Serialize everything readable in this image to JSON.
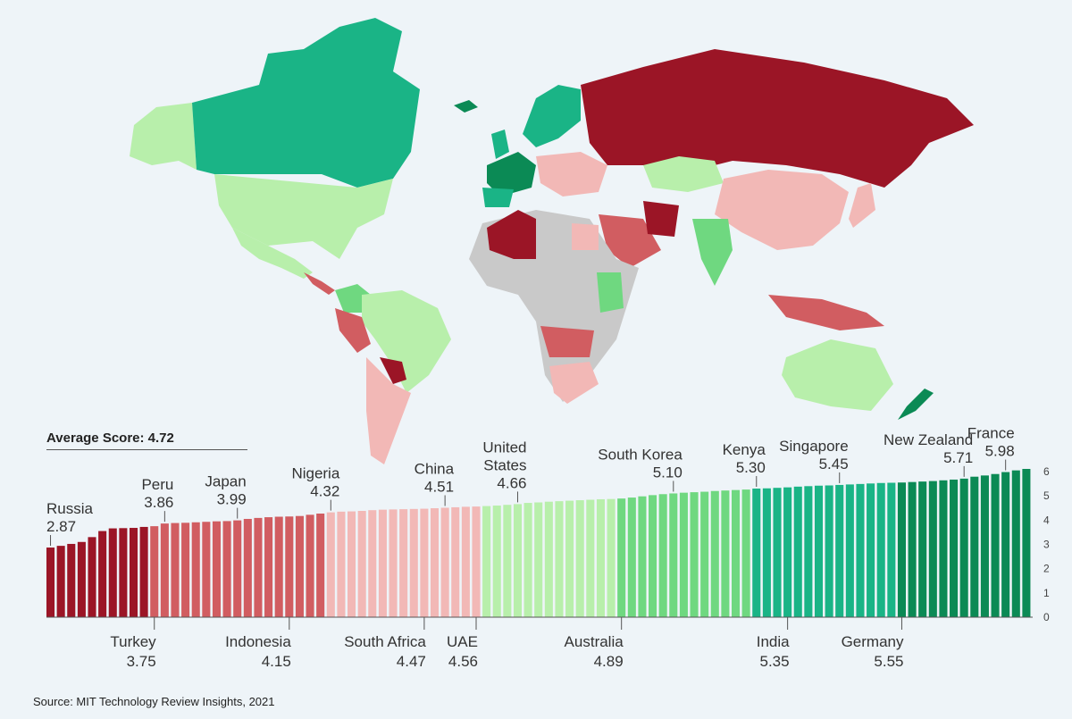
{
  "average": {
    "label": "Average Score: 4.72"
  },
  "source": "Source: MIT Technology Review Insights, 2021",
  "palette": {
    "dark_red": "#9b1526",
    "mid_red": "#d15d61",
    "light_red": "#f2b8b6",
    "light_green": "#b8efab",
    "mid_green": "#6fd880",
    "teal": "#1ab486",
    "dark_green": "#0b8a55",
    "no_data": "#c9c9c9"
  },
  "chart_data": {
    "type": "bar",
    "ylim": [
      0,
      6
    ],
    "yticks": [
      "0",
      "1",
      "2",
      "3",
      "4",
      "5",
      "6"
    ],
    "values": [
      2.87,
      2.94,
      3.02,
      3.1,
      3.3,
      3.55,
      3.66,
      3.67,
      3.68,
      3.72,
      3.75,
      3.86,
      3.88,
      3.89,
      3.91,
      3.93,
      3.95,
      3.96,
      3.99,
      4.05,
      4.09,
      4.12,
      4.14,
      4.15,
      4.17,
      4.22,
      4.27,
      4.32,
      4.35,
      4.36,
      4.38,
      4.41,
      4.43,
      4.44,
      4.45,
      4.46,
      4.47,
      4.49,
      4.51,
      4.53,
      4.55,
      4.56,
      4.58,
      4.6,
      4.63,
      4.66,
      4.71,
      4.73,
      4.76,
      4.78,
      4.8,
      4.82,
      4.84,
      4.86,
      4.87,
      4.89,
      4.93,
      4.98,
      5.03,
      5.07,
      5.1,
      5.13,
      5.15,
      5.17,
      5.2,
      5.22,
      5.24,
      5.26,
      5.3,
      5.31,
      5.33,
      5.35,
      5.38,
      5.4,
      5.42,
      5.43,
      5.45,
      5.47,
      5.49,
      5.51,
      5.53,
      5.54,
      5.55,
      5.57,
      5.59,
      5.61,
      5.64,
      5.67,
      5.71,
      5.79,
      5.84,
      5.9,
      5.98,
      6.05,
      6.11
    ],
    "labels_above": [
      {
        "index": 0,
        "name": "Russia",
        "value": "2.87"
      },
      {
        "index": 11,
        "name": "Peru",
        "value": "3.86"
      },
      {
        "index": 18,
        "name": "Japan",
        "value": "3.99"
      },
      {
        "index": 27,
        "name": "Nigeria",
        "value": "4.32"
      },
      {
        "index": 38,
        "name": "China",
        "value": "4.51"
      },
      {
        "index": 45,
        "name": "United States",
        "name_lines": [
          "United",
          "States"
        ],
        "value": "4.66"
      },
      {
        "index": 60,
        "name": "South Korea",
        "value": "5.10"
      },
      {
        "index": 68,
        "name": "Kenya",
        "value": "5.30"
      },
      {
        "index": 76,
        "name": "Singapore",
        "value": "5.45"
      },
      {
        "index": 88,
        "name": "New Zealand",
        "value": "5.71"
      },
      {
        "index": 92,
        "name": "France",
        "value": "5.98"
      }
    ],
    "labels_below": [
      {
        "index": 10,
        "name": "Turkey",
        "value": "3.75"
      },
      {
        "index": 23,
        "name": "Indonesia",
        "value": "4.15"
      },
      {
        "index": 36,
        "name": "South Africa",
        "value": "4.47"
      },
      {
        "index": 41,
        "name": "UAE",
        "value": "4.56"
      },
      {
        "index": 55,
        "name": "Australia",
        "value": "4.89"
      },
      {
        "index": 71,
        "name": "India",
        "value": "5.35"
      },
      {
        "index": 82,
        "name": "Germany",
        "value": "5.55"
      }
    ]
  }
}
